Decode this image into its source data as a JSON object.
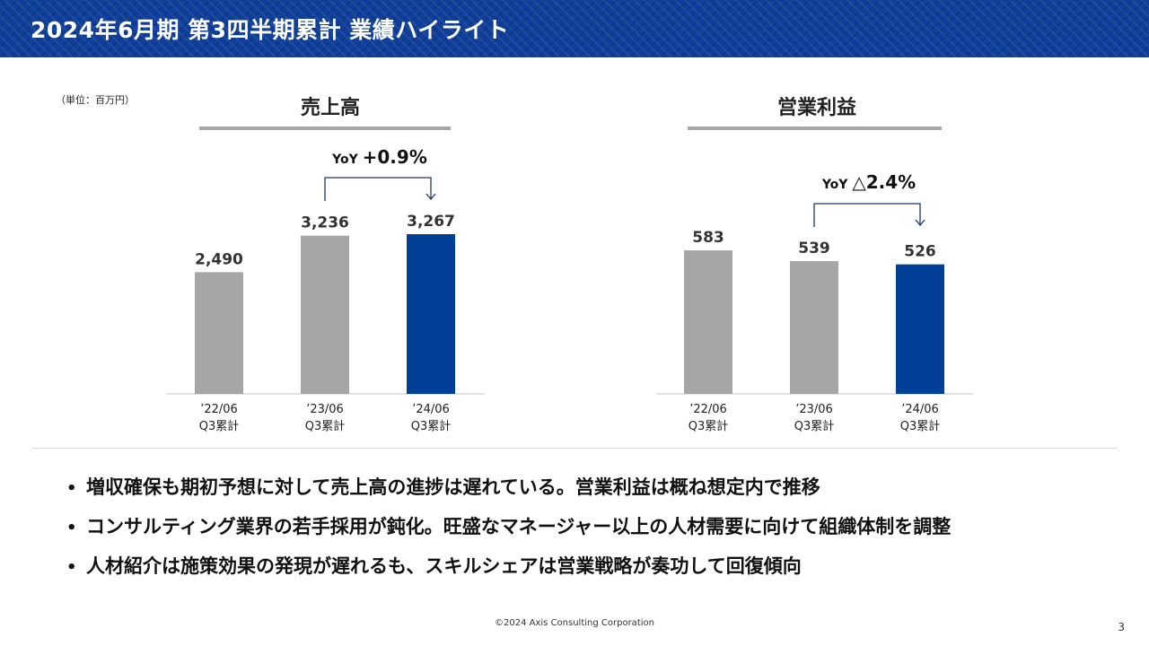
{
  "header": {
    "title": "2024年6月期 第3四半期累計 業績ハイライト"
  },
  "unit_label": "（単位：百万円）",
  "colors": {
    "header_bg": "#0f3f9a",
    "bar_past": "#a6a6a6",
    "bar_current": "#003f98",
    "axis": "#d9d9d9"
  },
  "chart_data": [
    {
      "type": "bar",
      "title": "売上高",
      "categories": [
        [
          "’22/06",
          "Q3累計"
        ],
        [
          "’23/06",
          "Q3累計"
        ],
        [
          "’24/06",
          "Q3累計"
        ]
      ],
      "values": [
        2490,
        3236,
        3267
      ],
      "value_labels": [
        "2,490",
        "3,236",
        "3,267"
      ],
      "highlight_index": 2,
      "yoy": {
        "label": "YoY",
        "value": "+0.9%",
        "from_index": 1,
        "to_index": 2
      }
    },
    {
      "type": "bar",
      "title": "営業利益",
      "categories": [
        [
          "’22/06",
          "Q3累計"
        ],
        [
          "’23/06",
          "Q3累計"
        ],
        [
          "’24/06",
          "Q3累計"
        ]
      ],
      "values": [
        583,
        539,
        526
      ],
      "value_labels": [
        "583",
        "539",
        "526"
      ],
      "highlight_index": 2,
      "yoy": {
        "label": "YoY",
        "value": "△2.4%",
        "from_index": 1,
        "to_index": 2
      }
    }
  ],
  "bullets": [
    "増収確保も期初予想に対して売上高の進捗は遅れている。営業利益は概ね想定内で推移",
    "コンサルティング業界の若手採用が鈍化。旺盛なマネージャー以上の人材需要に向けて組織体制を調整",
    "人材紹介は施策効果の発現が遅れるも、スキルシェアは営業戦略が奏功して回復傾向"
  ],
  "footer": {
    "copyright": "©2024 Axis Consulting Corporation",
    "page_number": "3"
  }
}
